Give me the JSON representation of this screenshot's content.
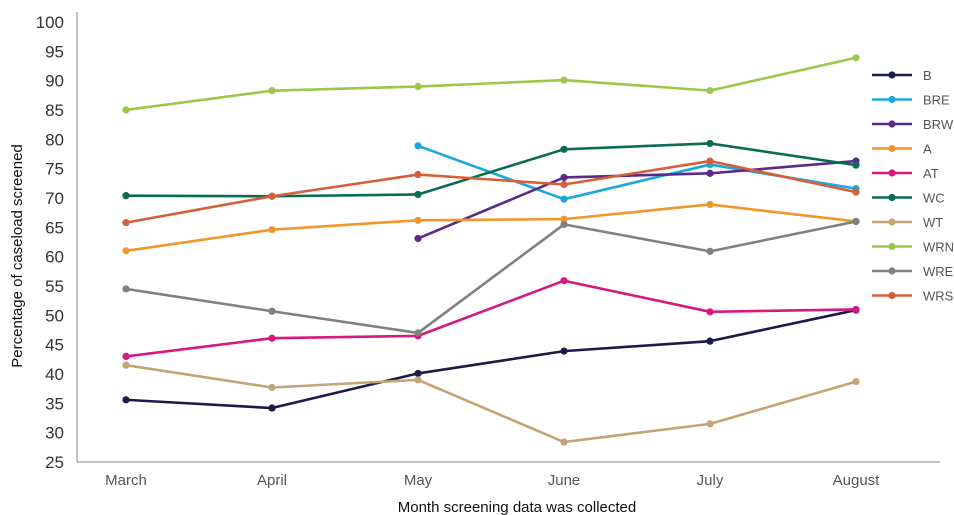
{
  "chart_data": {
    "type": "line",
    "title": "",
    "xlabel": "Month screening data was collected",
    "ylabel": "Percentage of caseload screened",
    "categories": [
      "March",
      "April",
      "May",
      "June",
      "July",
      "August"
    ],
    "ylim": [
      25,
      100
    ],
    "yticks": [
      25,
      30,
      35,
      40,
      45,
      50,
      55,
      60,
      65,
      70,
      75,
      80,
      85,
      90,
      95,
      100
    ],
    "grid": false,
    "legend_position": "right",
    "series": [
      {
        "name": "B",
        "color": "#1b1b4b",
        "values": [
          35.6,
          34.2,
          40.1,
          43.9,
          45.6,
          50.9
        ]
      },
      {
        "name": "BRE",
        "color": "#1da7e0",
        "values": [
          null,
          null,
          78.9,
          69.8,
          75.7,
          71.6
        ]
      },
      {
        "name": "BRW",
        "color": "#5b2a86",
        "values": [
          null,
          null,
          63.1,
          73.5,
          74.2,
          76.3
        ]
      },
      {
        "name": "A",
        "color": "#f0962b",
        "values": [
          61.0,
          64.6,
          66.2,
          66.4,
          68.9,
          66.0
        ]
      },
      {
        "name": "AT",
        "color": "#d6187f",
        "values": [
          43.0,
          46.1,
          46.5,
          55.9,
          50.6,
          51.0
        ]
      },
      {
        "name": "WC",
        "color": "#0b6b55",
        "values": [
          70.4,
          70.3,
          70.6,
          78.3,
          79.3,
          75.6
        ]
      },
      {
        "name": "WT",
        "color": "#c4a374",
        "values": [
          41.5,
          37.7,
          39.0,
          28.4,
          31.5,
          38.7
        ]
      },
      {
        "name": "WRN",
        "color": "#9cc84a",
        "values": [
          85.0,
          88.3,
          89.0,
          90.1,
          88.3,
          93.9
        ]
      },
      {
        "name": "WRE",
        "color": "#808080",
        "values": [
          54.5,
          50.7,
          47.0,
          65.5,
          60.9,
          66.0
        ]
      },
      {
        "name": "WRS",
        "color": "#d4603a",
        "values": [
          65.8,
          70.3,
          74.0,
          72.3,
          76.3,
          71.0
        ]
      }
    ]
  }
}
